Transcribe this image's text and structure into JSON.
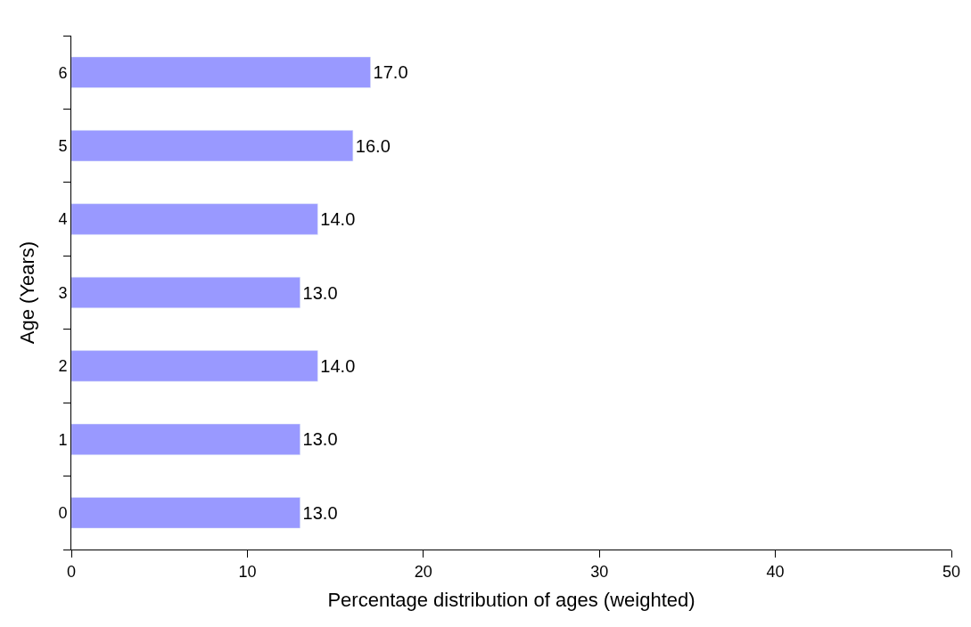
{
  "chart_data": {
    "type": "bar",
    "orientation": "horizontal",
    "xlabel": "Percentage distribution of ages (weighted)",
    "ylabel": "Age (Years)",
    "categories": [
      "6",
      "5",
      "4",
      "3",
      "2",
      "1",
      "0"
    ],
    "values": [
      17,
      16,
      14,
      13,
      14,
      13,
      13
    ],
    "value_labels": [
      "17.0",
      "16.0",
      "14.0",
      "13.0",
      "14.0",
      "13.0",
      "13.0"
    ],
    "color": "#9999ff",
    "xlim": [
      0,
      50
    ],
    "xticks": [
      0,
      10,
      20,
      30,
      40,
      50
    ],
    "grid": false
  }
}
